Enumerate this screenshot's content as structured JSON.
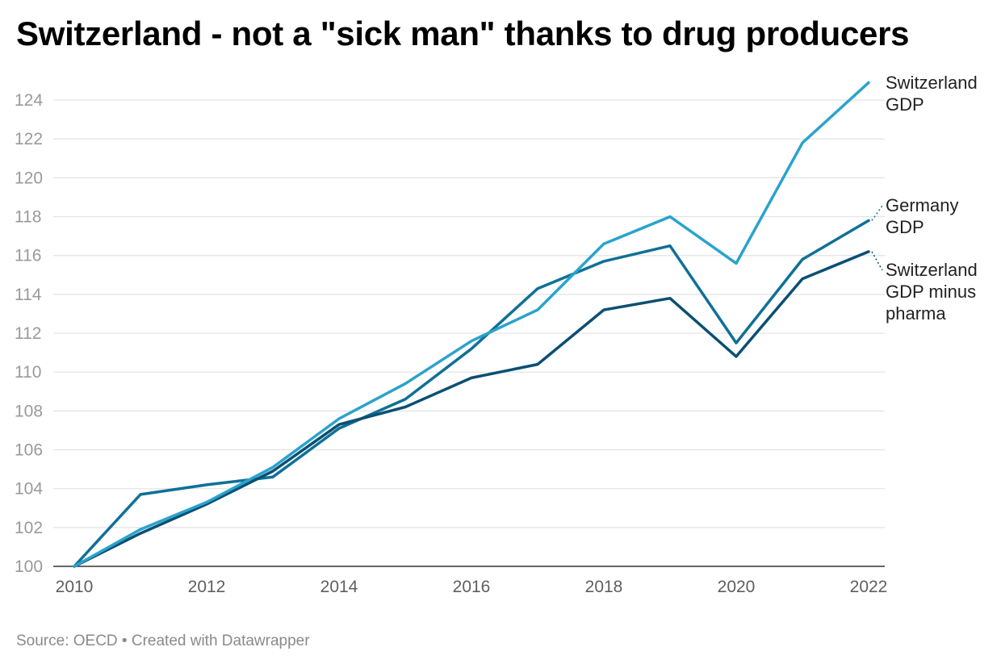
{
  "title": "Switzerland - not a \"sick man\" thanks to drug producers",
  "source": "Source: OECD • Created with Datawrapper",
  "colors": {
    "switzerland": "#2aa3cd",
    "germany": "#0f7096",
    "switzerland_minus_pharma": "#0b4f73",
    "grid": "#e2e2e2",
    "axis": "#333333"
  },
  "chart_data": {
    "type": "line",
    "title": "Switzerland - not a \"sick man\" thanks to drug producers",
    "xlabel": "",
    "ylabel": "",
    "xlim": [
      2010,
      2022
    ],
    "ylim": [
      100,
      125
    ],
    "yticks": [
      100,
      102,
      104,
      106,
      108,
      110,
      112,
      114,
      116,
      118,
      120,
      122,
      124
    ],
    "xticks": [
      2010,
      2012,
      2014,
      2016,
      2018,
      2020,
      2022
    ],
    "x": [
      2010,
      2011,
      2012,
      2013,
      2014,
      2015,
      2016,
      2017,
      2018,
      2019,
      2020,
      2021,
      2022
    ],
    "grid": true,
    "legend": "direct labels at right",
    "series": [
      {
        "key": "switzerland",
        "name": "Switzerland GDP",
        "label_lines": [
          "Switzerland",
          "GDP"
        ],
        "values": [
          100,
          101.9,
          103.3,
          105.1,
          107.6,
          109.4,
          111.6,
          113.2,
          116.6,
          118.0,
          115.6,
          121.8,
          124.9
        ]
      },
      {
        "key": "germany",
        "name": "Germany GDP",
        "label_lines": [
          "Germany",
          "GDP"
        ],
        "values": [
          100,
          103.7,
          104.2,
          104.6,
          107.1,
          108.6,
          111.2,
          114.3,
          115.7,
          116.5,
          111.5,
          115.8,
          117.8
        ]
      },
      {
        "key": "switzerland_minus_pharma",
        "name": "Switzerland GDP minus pharma",
        "label_lines": [
          "Switzerland",
          "GDP minus",
          "pharma"
        ],
        "values": [
          100,
          101.7,
          103.2,
          104.9,
          107.3,
          108.2,
          109.7,
          110.4,
          113.2,
          113.8,
          110.8,
          114.8,
          116.2
        ]
      }
    ]
  }
}
